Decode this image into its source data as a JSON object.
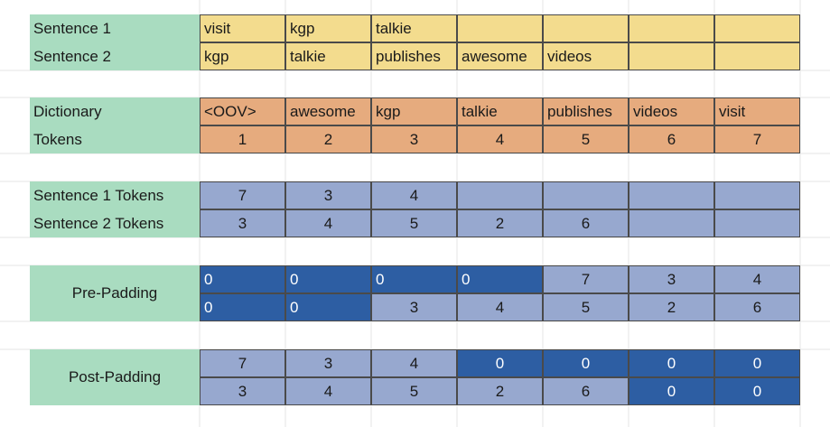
{
  "sentences": {
    "rows": [
      {
        "label": "Sentence 1",
        "cells": [
          "visit",
          "kgp",
          "talkie",
          "",
          "",
          "",
          ""
        ]
      },
      {
        "label": "Sentence 2",
        "cells": [
          "kgp",
          "talkie",
          "publishes",
          "awesome",
          "videos",
          "",
          ""
        ]
      }
    ]
  },
  "dictionary": {
    "rows": [
      {
        "label": "Dictionary",
        "cells": [
          "<OOV>",
          "awesome",
          "kgp",
          "talkie",
          "publishes",
          "videos",
          "visit"
        ]
      },
      {
        "label": "Tokens",
        "cells": [
          "1",
          "2",
          "3",
          "4",
          "5",
          "6",
          "7"
        ]
      }
    ]
  },
  "sentence_tokens": {
    "rows": [
      {
        "label": "Sentence 1 Tokens",
        "cells": [
          "7",
          "3",
          "4",
          "",
          "",
          "",
          ""
        ]
      },
      {
        "label": "Sentence 2 Tokens",
        "cells": [
          "3",
          "4",
          "5",
          "2",
          "6",
          "",
          ""
        ]
      }
    ]
  },
  "pre_padding": {
    "label": "Pre-Padding",
    "rows": [
      [
        "0",
        "0",
        "0",
        "0",
        "7",
        "3",
        "4"
      ],
      [
        "0",
        "0",
        "3",
        "4",
        "5",
        "2",
        "6"
      ]
    ],
    "padded": [
      [
        true,
        true,
        true,
        true,
        false,
        false,
        false
      ],
      [
        true,
        true,
        false,
        false,
        false,
        false,
        false
      ]
    ]
  },
  "post_padding": {
    "label": "Post-Padding",
    "rows": [
      [
        "7",
        "3",
        "4",
        "0",
        "0",
        "0",
        "0"
      ],
      [
        "3",
        "4",
        "5",
        "2",
        "6",
        "0",
        "0"
      ]
    ],
    "padded": [
      [
        false,
        false,
        false,
        true,
        true,
        true,
        true
      ],
      [
        false,
        false,
        false,
        false,
        false,
        true,
        true
      ]
    ]
  },
  "colors": {
    "label_bg": "#a9dcc0",
    "sentence_bg": "#f3dc8e",
    "dictionary_bg": "#e6ab7e",
    "token_bg": "#97a8cf",
    "padding_bg": "#2d5ea3"
  }
}
